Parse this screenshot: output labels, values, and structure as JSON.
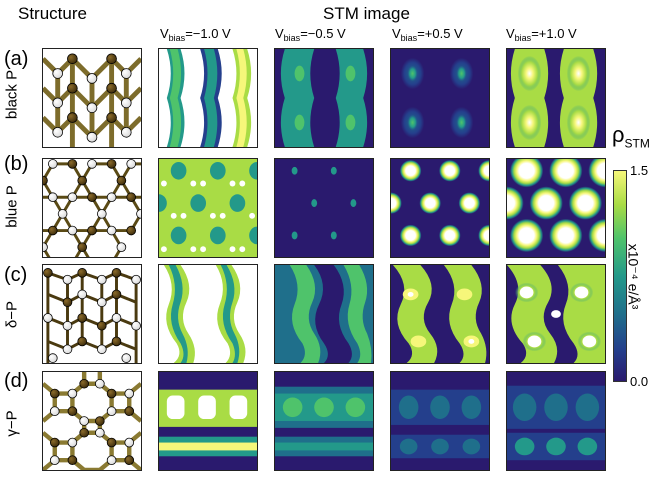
{
  "headers": {
    "structure": "Structure",
    "stm": "STM image"
  },
  "bias_labels": [
    {
      "pre": "V",
      "sub": "bias",
      "post": "=−1.0 V"
    },
    {
      "pre": "V",
      "sub": "bias",
      "post": "=−0.5 V"
    },
    {
      "pre": "V",
      "sub": "bias",
      "post": "=+0.5 V"
    },
    {
      "pre": "V",
      "sub": "bias",
      "post": "=+1.0 V"
    }
  ],
  "rows": [
    {
      "label": "(a)",
      "name": "black P"
    },
    {
      "label": "(b)",
      "name": "blue P"
    },
    {
      "label": "(c)",
      "name": "δ−P"
    },
    {
      "label": "(d)",
      "name": "γ−P"
    }
  ],
  "colorbar": {
    "symbol": "ρ",
    "symbol_sub": "STM",
    "max_label": "1.5",
    "min_label": "0.0",
    "unit": "x10⁻⁴ e/Å³",
    "colors": [
      "#2a1a6e",
      "#243f8c",
      "#1f6f8b",
      "#23998a",
      "#4fc36b",
      "#a9dc45",
      "#f6f77a"
    ]
  }
}
